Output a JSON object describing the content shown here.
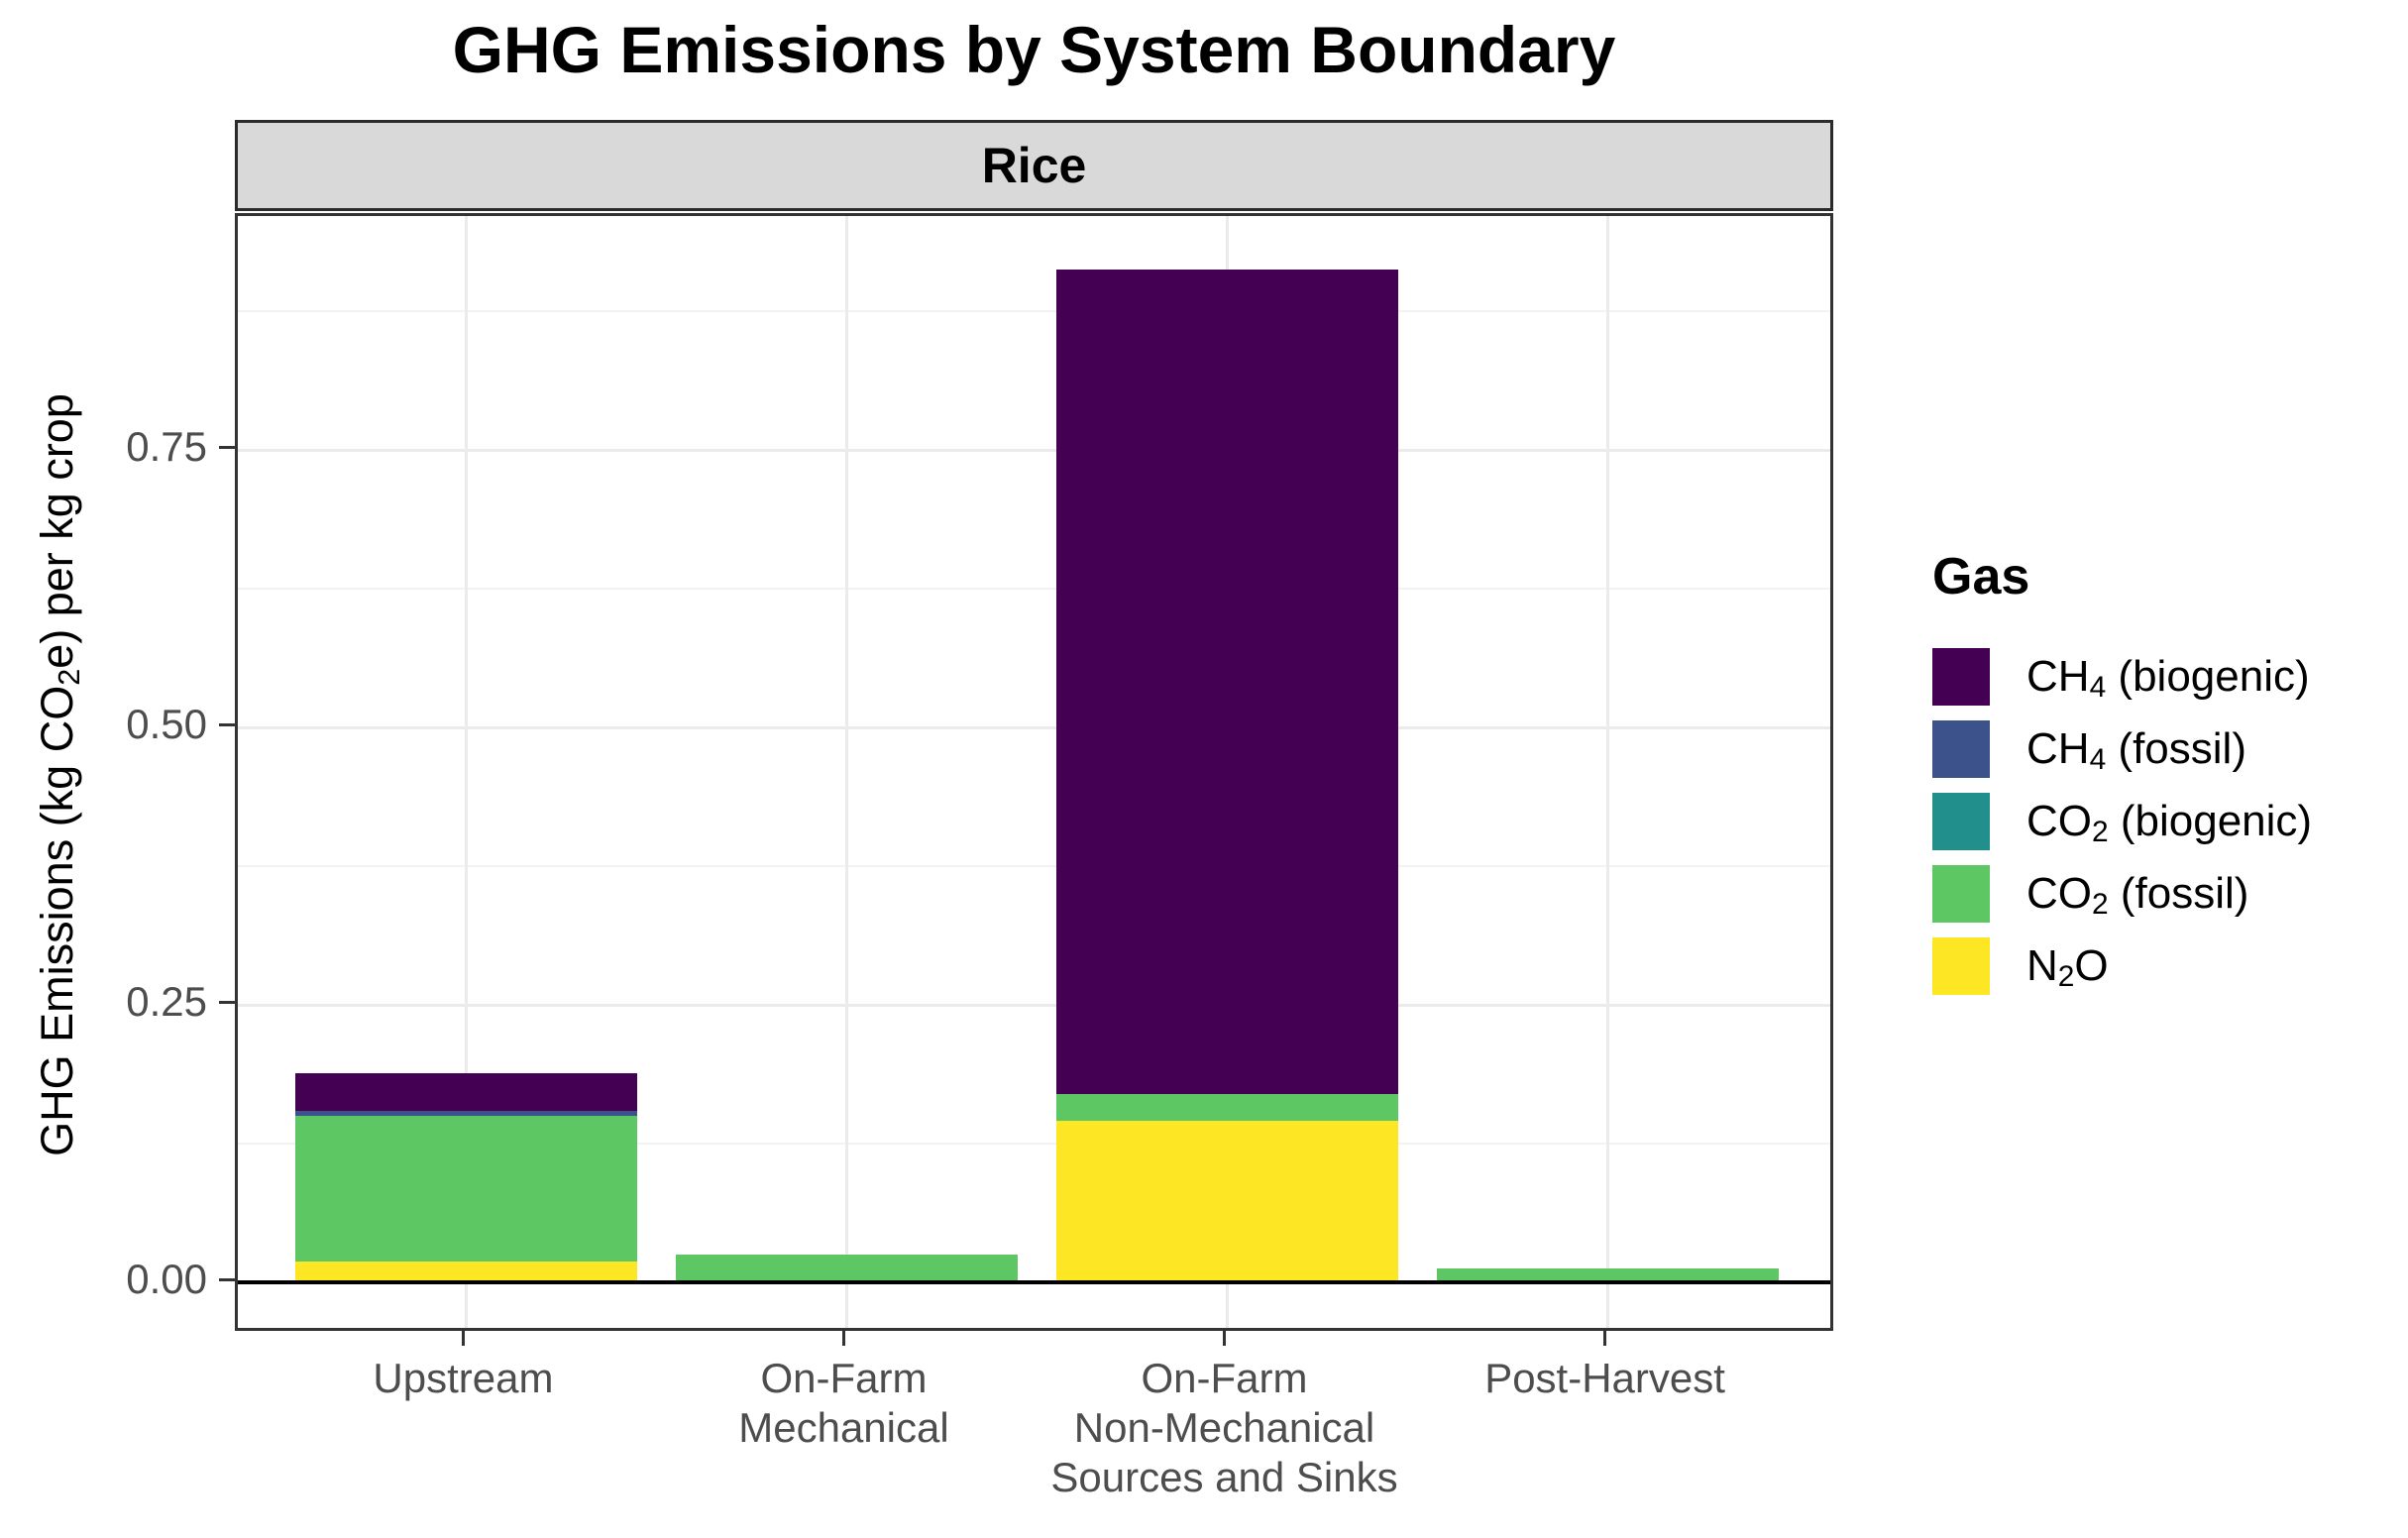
{
  "chart_data": {
    "type": "bar",
    "stacked": true,
    "title": "GHG Emissions by System Boundary",
    "facet_label": "Rice",
    "xlabel": "",
    "ylabel": "GHG Emissions (kg CO2e) per kg crop",
    "ylabel_parts": [
      {
        "t": "GHG Emissions (kg CO"
      },
      {
        "t": "2",
        "sub": true
      },
      {
        "t": "e) per kg crop"
      }
    ],
    "categories": [
      "Upstream",
      "On-Farm Mechanical",
      "On-Farm Non-Mechanical Sources and Sinks",
      "Post-Harvest"
    ],
    "category_label_lines": [
      [
        "Upstream"
      ],
      [
        "On-Farm",
        "Mechanical"
      ],
      [
        "On-Farm",
        "Non-Mechanical",
        "Sources and Sinks"
      ],
      [
        "Post-Harvest"
      ]
    ],
    "legend_title": "Gas",
    "legend_position": "right",
    "series": [
      {
        "name": "CH4 (biogenic)",
        "label_parts": [
          {
            "t": "CH"
          },
          {
            "t": "4",
            "sub": true
          },
          {
            "t": " (biogenic)"
          }
        ],
        "color": "#440154",
        "values": [
          0.034,
          0.0,
          0.743,
          0.0
        ]
      },
      {
        "name": "CH4 (fossil)",
        "label_parts": [
          {
            "t": "CH"
          },
          {
            "t": "4",
            "sub": true
          },
          {
            "t": " (fossil)"
          }
        ],
        "color": "#3B528B",
        "values": [
          0.005,
          0.0,
          0.0,
          0.0
        ]
      },
      {
        "name": "CO2 (biogenic)",
        "label_parts": [
          {
            "t": "CO"
          },
          {
            "t": "2",
            "sub": true
          },
          {
            "t": " (biogenic)"
          }
        ],
        "color": "#21908C",
        "values": [
          0.0,
          0.0,
          0.0,
          0.0
        ]
      },
      {
        "name": "CO2 (fossil)",
        "label_parts": [
          {
            "t": "CO"
          },
          {
            "t": "2",
            "sub": true
          },
          {
            "t": " (fossil)"
          }
        ],
        "color": "#5DC863",
        "values": [
          0.131,
          0.023,
          0.024,
          0.013
        ]
      },
      {
        "name": "N2O",
        "label_parts": [
          {
            "t": "N"
          },
          {
            "t": "2",
            "sub": true
          },
          {
            "t": "O"
          }
        ],
        "color": "#FDE725",
        "values": [
          0.019,
          0.002,
          0.146,
          0.0
        ]
      }
    ],
    "stack_order": "reverse-of-series-list (N2O on bottom, CH4 biogenic on top)",
    "totals": [
      0.189,
      0.025,
      0.913,
      0.013
    ],
    "ylim": [
      -0.046,
      0.961
    ],
    "yticks": [
      0.0,
      0.25,
      0.5,
      0.75
    ],
    "ytick_labels": [
      "0.00",
      "0.25",
      "0.50",
      "0.75"
    ],
    "yminor": [
      0.125,
      0.375,
      0.625,
      0.875
    ],
    "grid": true,
    "zero_line": true,
    "strip_fill": "#D9D9D9"
  }
}
